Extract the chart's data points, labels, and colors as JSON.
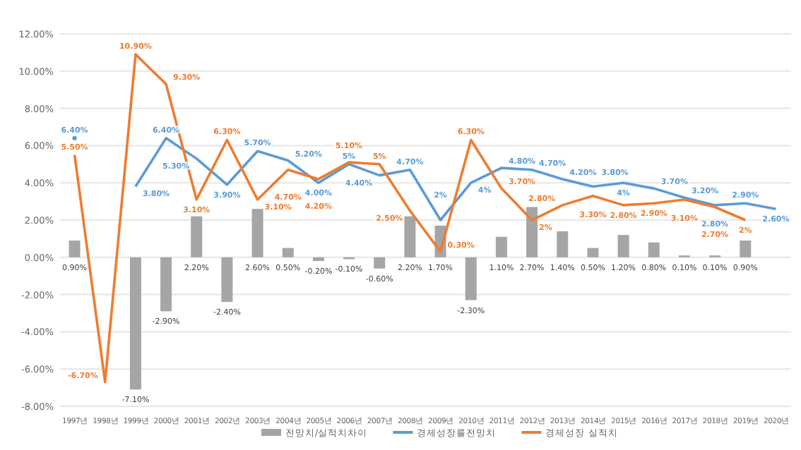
{
  "chart_data": {
    "type": "bar",
    "categories": [
      "1997년",
      "1998년",
      "1999년",
      "2000년",
      "2001년",
      "2002년",
      "2003년",
      "2004년",
      "2005년",
      "2006년",
      "2007년",
      "2008년",
      "2009년",
      "2010년",
      "2011년",
      "2012년",
      "2013년",
      "2014년",
      "2015년",
      "2016년",
      "2017년",
      "2018년",
      "2019년",
      "2020년"
    ],
    "series": [
      {
        "name": "전망치/실적치차이",
        "type": "bar",
        "color": "#a5a5a5",
        "values": [
          0.9,
          null,
          -7.1,
          -2.9,
          2.2,
          -2.4,
          2.6,
          0.5,
          -0.2,
          -0.1,
          -0.6,
          2.2,
          1.7,
          -2.3,
          1.1,
          2.7,
          1.4,
          0.5,
          1.2,
          0.8,
          0.1,
          0.1,
          0.9,
          null
        ],
        "value_labels": [
          "0.90%",
          null,
          "-7.10%",
          "-2.90%",
          "2.20%",
          "-2.40%",
          "2.60%",
          "0.50%",
          "-0.20%",
          "-0.10%",
          "-0.60%",
          "2.20%",
          "1.70%",
          "-2.30%",
          "1.10%",
          "2.70%",
          "1.40%",
          "0.50%",
          "1.20%",
          "0.80%",
          "0.10%",
          "0.10%",
          "0.90%",
          null
        ]
      },
      {
        "name": "경제성장률전망치",
        "type": "line",
        "color": "#5b9bd5",
        "values": [
          6.4,
          null,
          3.8,
          6.4,
          5.3,
          3.9,
          5.7,
          5.2,
          4.0,
          5,
          4.4,
          4.7,
          2,
          4,
          4.8,
          4.7,
          4.2,
          3.8,
          4,
          3.7,
          3.2,
          2.8,
          2.9,
          2.6
        ],
        "value_labels": [
          "6.40%",
          null,
          "3.80%",
          "6.40%",
          "5.30%",
          "3.90%",
          "5.70%",
          "5.20%",
          "4.00%",
          "5%",
          "4.40%",
          "4.70%",
          "2%",
          "4%",
          "4.80%",
          "4.70%",
          "4.20%",
          "3.80%",
          "4%",
          "3.70%",
          "3.20%",
          "2.80%",
          "2.90%",
          "2.60%"
        ]
      },
      {
        "name": "경제성장 실적치",
        "type": "line",
        "color": "#ed7d31",
        "values": [
          5.5,
          -6.7,
          10.9,
          9.3,
          3.1,
          6.3,
          3.1,
          4.7,
          4.2,
          5.1,
          5,
          2.5,
          0.3,
          6.3,
          3.7,
          2,
          2.8,
          3.3,
          2.8,
          2.9,
          3.1,
          2.7,
          2,
          null
        ],
        "value_labels": [
          "5.50%",
          "-6.70%",
          "10.90%",
          "9.30%",
          "3.10%",
          "6.30%",
          "3.10%",
          "4.70%",
          "4.20%",
          "5.10%",
          "5%",
          "2.50%",
          "0.30%",
          "6.30%",
          "3.70%",
          "2%",
          "2.80%",
          "3.30%",
          "2.80%",
          "2.90%",
          "3.10%",
          "2.70%",
          "2%",
          null
        ]
      }
    ],
    "ylim": [
      -8,
      12
    ],
    "yticks": [
      {
        "value": -8,
        "label": "-8.00%"
      },
      {
        "value": -6,
        "label": "-6.00%"
      },
      {
        "value": -4,
        "label": "-4.00%"
      },
      {
        "value": -2,
        "label": "-2.00%"
      },
      {
        "value": 0,
        "label": "0.00%"
      },
      {
        "value": 2,
        "label": "2.00%"
      },
      {
        "value": 4,
        "label": "4.00%"
      },
      {
        "value": 6,
        "label": "6.00%"
      },
      {
        "value": 8,
        "label": "8.00%"
      },
      {
        "value": 10,
        "label": "10.00%"
      },
      {
        "value": 12,
        "label": "12.00%"
      }
    ],
    "grid": "y",
    "legend": "bottom"
  }
}
